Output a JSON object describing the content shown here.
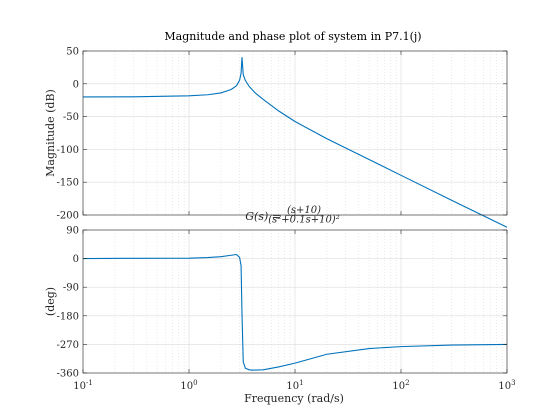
{
  "chart_data": {
    "type": "line",
    "title": "Magnitude and phase plot of system in P7.1(j)",
    "annotation": {
      "lhs": "G(s) =",
      "numerator": "(s+10)",
      "denominator": "(s²+0.1s+10)²"
    },
    "xlabel": "Frequency (rad/s)",
    "xscale": "log",
    "xlim": [
      0.1,
      1000
    ],
    "xticks": [
      {
        "value": 0.1,
        "base": "10",
        "exp": "-1"
      },
      {
        "value": 1,
        "base": "10",
        "exp": "0"
      },
      {
        "value": 10,
        "base": "10",
        "exp": "1"
      },
      {
        "value": 100,
        "base": "10",
        "exp": "2"
      },
      {
        "value": 1000,
        "base": "10",
        "exp": "3"
      }
    ],
    "grid": true,
    "minor_grid": true,
    "color": "#0072BD",
    "panels": [
      {
        "name": "magnitude",
        "ylabel": "Magnitude (dB)",
        "ylim": [
          -200,
          50
        ],
        "yticks": [
          50,
          0,
          -50,
          -100,
          -150,
          -200
        ],
        "series": [
          {
            "name": "Magnitude",
            "x": [
              0.1,
              0.3,
              1,
              1.5,
              2,
              2.5,
              2.8,
              3,
              3.1,
              3.162,
              3.25,
              3.4,
              3.7,
              4.2,
              5,
              7,
              10,
              20,
              50,
              100,
              300,
              1000
            ],
            "y": [
              -20,
              -19.8,
              -18.3,
              -16.7,
              -13.9,
              -8.7,
              -3.1,
              5.3,
              16.2,
              40,
              13.8,
              5.2,
              -4.1,
              -13.7,
              -23.6,
              -41.3,
              -57.5,
              -83.8,
              -115.4,
              -139.5,
              -177.5,
              -218.7
            ]
          }
        ]
      },
      {
        "name": "phase",
        "ylabel": "(deg)",
        "ylim": [
          -360,
          90
        ],
        "yticks": [
          90,
          0,
          -90,
          -180,
          -270,
          -360
        ],
        "series": [
          {
            "name": "Phase",
            "x": [
              0.1,
              0.3,
              1,
              1.5,
              2,
              2.5,
              2.8,
              3,
              3.1,
              3.162,
              3.25,
              3.4,
              3.7,
              4,
              5,
              7,
              10,
              20,
              50,
              100,
              300,
              1000
            ],
            "y": [
              0,
              1,
              1.3,
              3.4,
              5.9,
              10.5,
              12.9,
              4,
              -22,
              -175,
              -325,
              -345,
              -350,
              -351,
              -350,
              -341,
              -329,
              -301,
              -283,
              -277,
              -272,
              -270
            ]
          }
        ]
      }
    ]
  }
}
